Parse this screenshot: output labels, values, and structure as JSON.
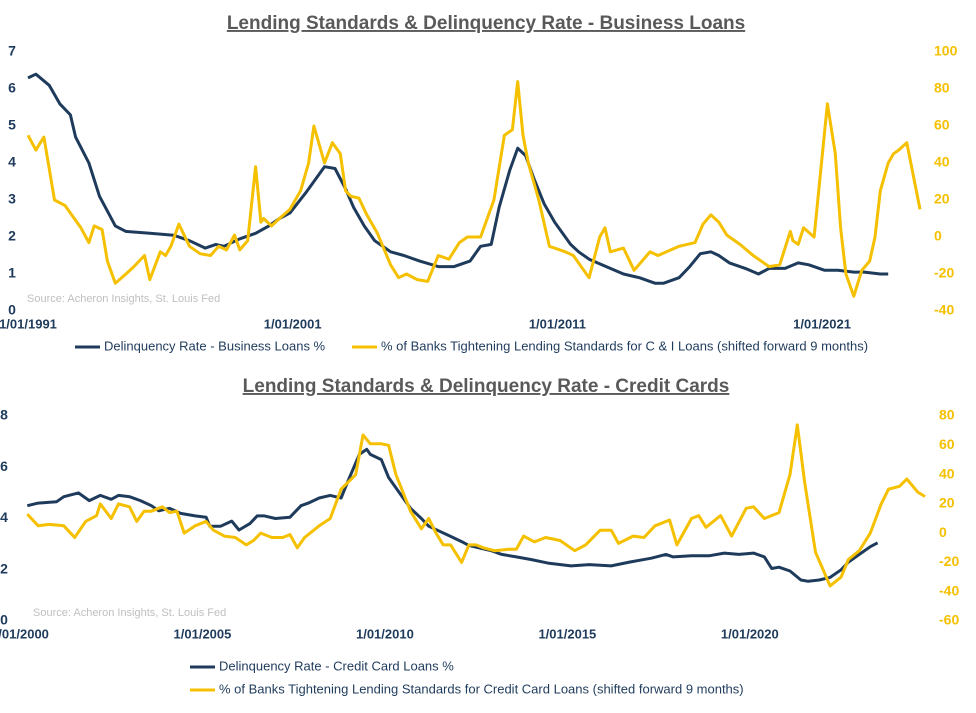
{
  "chart_data": [
    {
      "type": "line",
      "title": "Lending Standards & Delinquency Rate - Business Loans",
      "annotation": "Source: Acheron Insights, St. Louis Fed",
      "xlim": [
        1991,
        2024.7
      ],
      "xticks": [
        {
          "value": 1991,
          "label": "1/01/1991"
        },
        {
          "value": 2001,
          "label": "1/01/2001"
        },
        {
          "value": 2011,
          "label": "1/01/2011"
        },
        {
          "value": 2021,
          "label": "1/01/2021"
        }
      ],
      "ylim": [
        0,
        7
      ],
      "yticks": [
        0,
        1,
        2,
        3,
        4,
        5,
        6,
        7
      ],
      "y2lim": [
        -40,
        100
      ],
      "y2ticks": [
        -40,
        -20,
        0,
        20,
        40,
        60,
        80,
        100
      ],
      "legend": "bottom",
      "series": [
        {
          "name": "Delinquency Rate - Business Loans %",
          "color": "#1f3b5c",
          "x": [
            1991.0,
            1991.3,
            1991.8,
            1992.2,
            1992.6,
            1992.8,
            1993.3,
            1993.7,
            1994.0,
            1994.3,
            1994.7,
            1995.6,
            1996.5,
            1997.1,
            1997.7,
            1998.1,
            1998.4,
            1999.0,
            1999.6,
            2000.1,
            2000.5,
            2000.9,
            2001.5,
            2001.8,
            2002.2,
            2002.6,
            2003.0,
            2003.3,
            2003.7,
            2004.1,
            2004.7,
            2005.2,
            2005.8,
            2006.5,
            2007.1,
            2007.7,
            2008.1,
            2008.5,
            2008.8,
            2009.2,
            2009.5,
            2009.8,
            2010.1,
            2010.5,
            2010.9,
            2011.5,
            2011.8,
            2012.2,
            2013.0,
            2013.5,
            2014.1,
            2014.7,
            2015.0,
            2015.6,
            2016.0,
            2016.4,
            2016.8,
            2017.1,
            2017.5,
            2018.1,
            2018.6,
            2019.0,
            2019.6,
            2020.1,
            2020.5,
            2021.1,
            2021.6,
            2022.2,
            2022.6,
            2023.2,
            2023.5
          ],
          "values": [
            6.3,
            6.4,
            6.1,
            5.6,
            5.3,
            4.7,
            4.0,
            3.1,
            2.7,
            2.3,
            2.15,
            2.1,
            2.05,
            1.9,
            1.7,
            1.8,
            1.75,
            1.95,
            2.1,
            2.3,
            2.5,
            2.65,
            3.2,
            3.5,
            3.9,
            3.85,
            3.3,
            2.8,
            2.3,
            1.9,
            1.6,
            1.5,
            1.35,
            1.2,
            1.2,
            1.35,
            1.75,
            1.8,
            2.8,
            3.8,
            4.4,
            4.2,
            3.6,
            2.9,
            2.4,
            1.8,
            1.6,
            1.4,
            1.15,
            1.0,
            0.9,
            0.75,
            0.75,
            0.9,
            1.2,
            1.55,
            1.6,
            1.5,
            1.3,
            1.15,
            1.0,
            1.15,
            1.15,
            1.3,
            1.25,
            1.1,
            1.1,
            1.05,
            1.05,
            1.0,
            1.0
          ]
        },
        {
          "name": "% of Banks Tightening Lending Standards for C & I Loans (shifted forward 9 months)",
          "color": "#f5c000",
          "axis": "y2",
          "x": [
            1991.0,
            1991.3,
            1991.6,
            1992.0,
            1992.4,
            1993.0,
            1993.3,
            1993.5,
            1993.8,
            1994.0,
            1994.3,
            1994.7,
            1995.0,
            1995.4,
            1995.6,
            1996.0,
            1996.2,
            1996.4,
            1996.7,
            1997.1,
            1997.5,
            1997.9,
            1998.2,
            1998.5,
            1998.8,
            1999.0,
            1999.3,
            1999.6,
            1999.8,
            1999.9,
            2000.2,
            2000.5,
            2000.9,
            2001.3,
            2001.6,
            2001.8,
            2002.2,
            2002.5,
            2002.8,
            2003.0,
            2003.2,
            2003.5,
            2003.8,
            2004.2,
            2004.7,
            2005.0,
            2005.3,
            2005.7,
            2006.1,
            2006.5,
            2006.9,
            2007.3,
            2007.6,
            2008.1,
            2008.6,
            2009.0,
            2009.3,
            2009.5,
            2009.7,
            2009.9,
            2010.3,
            2010.7,
            2011.3,
            2011.6,
            2012.2,
            2012.6,
            2012.8,
            2013.0,
            2013.5,
            2013.9,
            2014.5,
            2014.8,
            2015.6,
            2016.2,
            2016.5,
            2016.8,
            2017.1,
            2017.4,
            2017.9,
            2018.4,
            2019.0,
            2019.4,
            2019.8,
            2019.9,
            2020.1,
            2020.3,
            2020.7,
            2021.2,
            2021.5,
            2021.7,
            2021.9,
            2022.2,
            2022.5,
            2022.8,
            2023.0,
            2023.2,
            2023.5,
            2023.7,
            2023.9,
            2024.2,
            2024.7
          ],
          "values": [
            55,
            47,
            54,
            20,
            17,
            5,
            -3,
            6,
            4,
            -13,
            -25,
            -20,
            -16,
            -10,
            -23,
            -8,
            -10,
            -5,
            7,
            -5,
            -9,
            -10,
            -5,
            -7,
            1,
            -7,
            -2,
            38,
            8,
            10,
            6,
            10,
            15,
            25,
            40,
            60,
            40,
            51,
            45,
            25,
            22,
            21,
            12,
            2,
            -15,
            -22,
            -20,
            -23,
            -24,
            -10,
            -12,
            -3,
            0,
            0,
            20,
            55,
            58,
            84,
            55,
            40,
            20,
            -5,
            -8,
            -10,
            -22,
            0,
            5,
            -8,
            -6,
            -18,
            -8,
            -10,
            -5,
            -3,
            7,
            12,
            8,
            1,
            -4,
            -10,
            -16,
            -15,
            3,
            -2,
            -4,
            5,
            0,
            72,
            45,
            5,
            -20,
            -32,
            -18,
            -13,
            0,
            25,
            40,
            45,
            47,
            51,
            15
          ]
        }
      ]
    },
    {
      "type": "line",
      "title": "Lending Standards & Delinquency Rate - Credit Cards",
      "annotation": "Source: Acheron Insights, St. Louis Fed",
      "xlim": [
        2000,
        2024.8
      ],
      "xticks": [
        {
          "value": 2000,
          "label": "1/01/2000"
        },
        {
          "value": 2005,
          "label": "1/01/2005"
        },
        {
          "value": 2010,
          "label": "1/01/2010"
        },
        {
          "value": 2015,
          "label": "1/01/2015"
        },
        {
          "value": 2020,
          "label": "1/01/2020"
        }
      ],
      "ylim": [
        0,
        8
      ],
      "yticks": [
        0,
        2,
        4,
        6,
        8
      ],
      "y2lim": [
        -60,
        80
      ],
      "y2ticks": [
        -60,
        -40,
        -20,
        0,
        20,
        40,
        60,
        80
      ],
      "legend": "bottom",
      "series": [
        {
          "name": "Delinquency Rate - Credit Card Loans %",
          "color": "#1f3b5c",
          "x": [
            2000.2,
            2000.5,
            2001.0,
            2001.2,
            2001.6,
            2001.9,
            2002.2,
            2002.5,
            2002.7,
            2003.0,
            2003.3,
            2003.6,
            2003.8,
            2004.1,
            2004.4,
            2004.8,
            2005.1,
            2005.2,
            2005.5,
            2005.8,
            2006.0,
            2006.3,
            2006.5,
            2006.7,
            2007.0,
            2007.4,
            2007.7,
            2007.9,
            2008.2,
            2008.5,
            2008.8,
            2009.0,
            2009.3,
            2009.5,
            2009.6,
            2009.9,
            2010.1,
            2010.4,
            2010.7,
            2011.0,
            2011.2,
            2011.5,
            2011.8,
            2012.1,
            2012.3,
            2012.6,
            2012.9,
            2013.2,
            2013.6,
            2014.0,
            2014.5,
            2015.1,
            2015.6,
            2016.2,
            2016.7,
            2017.3,
            2017.7,
            2017.9,
            2018.4,
            2018.9,
            2019.3,
            2019.7,
            2020.1,
            2020.4,
            2020.6,
            2020.8,
            2021.1,
            2021.4,
            2021.6,
            2021.9,
            2022.2,
            2022.5,
            2022.7,
            2023.0,
            2023.3,
            2023.5
          ],
          "values": [
            4.5,
            4.6,
            4.65,
            4.85,
            5.0,
            4.7,
            4.9,
            4.75,
            4.9,
            4.85,
            4.7,
            4.5,
            4.3,
            4.4,
            4.2,
            4.1,
            4.05,
            3.7,
            3.7,
            3.9,
            3.55,
            3.8,
            4.1,
            4.1,
            4.0,
            4.05,
            4.5,
            4.6,
            4.8,
            4.9,
            4.8,
            5.5,
            6.5,
            6.7,
            6.5,
            6.3,
            5.6,
            5.0,
            4.4,
            4.0,
            3.7,
            3.5,
            3.3,
            3.1,
            2.95,
            2.85,
            2.75,
            2.6,
            2.5,
            2.4,
            2.25,
            2.15,
            2.2,
            2.15,
            2.3,
            2.45,
            2.6,
            2.5,
            2.55,
            2.55,
            2.65,
            2.6,
            2.65,
            2.5,
            2.05,
            2.1,
            1.95,
            1.6,
            1.55,
            1.6,
            1.7,
            2.0,
            2.3,
            2.6,
            2.9,
            3.05
          ]
        },
        {
          "name": "% of Banks Tightening Lending Standards for Credit Card Loans (shifted forward 9 months)",
          "color": "#f5c000",
          "axis": "y2",
          "x": [
            2000.2,
            2000.5,
            2000.8,
            2001.2,
            2001.5,
            2001.8,
            2002.1,
            2002.2,
            2002.5,
            2002.7,
            2003.0,
            2003.2,
            2003.4,
            2003.6,
            2003.9,
            2004.1,
            2004.3,
            2004.5,
            2004.8,
            2005.1,
            2005.3,
            2005.6,
            2005.9,
            2006.2,
            2006.4,
            2006.6,
            2006.9,
            2007.2,
            2007.4,
            2007.6,
            2007.8,
            2008.2,
            2008.5,
            2008.8,
            2009.2,
            2009.4,
            2009.6,
            2009.9,
            2010.1,
            2010.3,
            2010.7,
            2011.0,
            2011.2,
            2011.4,
            2011.6,
            2011.8,
            2012.1,
            2012.3,
            2012.5,
            2012.7,
            2013.0,
            2013.4,
            2013.6,
            2013.8,
            2014.1,
            2014.4,
            2014.8,
            2015.2,
            2015.5,
            2015.9,
            2016.2,
            2016.4,
            2016.8,
            2017.1,
            2017.4,
            2017.8,
            2018.0,
            2018.4,
            2018.6,
            2018.8,
            2019.2,
            2019.5,
            2019.9,
            2020.1,
            2020.4,
            2020.8,
            2021.1,
            2021.3,
            2021.5,
            2021.8,
            2022.2,
            2022.5,
            2022.7,
            2023.0,
            2023.3,
            2023.6,
            2023.8,
            2024.1,
            2024.3,
            2024.6,
            2024.8
          ],
          "values": [
            13,
            5,
            6,
            5,
            -3,
            8,
            12,
            20,
            10,
            20,
            18,
            8,
            15,
            15,
            18,
            14,
            15,
            0,
            5,
            8,
            2,
            -2,
            -3,
            -8,
            -5,
            0,
            -3,
            -3,
            -1,
            -10,
            -3,
            5,
            10,
            30,
            40,
            67,
            61,
            61,
            60,
            40,
            15,
            3,
            10,
            0,
            -8,
            -8,
            -20,
            -8,
            -8,
            -10,
            -12,
            -11,
            -11,
            -2,
            -6,
            -3,
            -5,
            -12,
            -8,
            2,
            2,
            -7,
            -2,
            -3,
            5,
            9,
            -8,
            10,
            12,
            4,
            12,
            -2,
            17,
            18,
            10,
            14,
            40,
            74,
            35,
            -13,
            -36,
            -30,
            -18,
            -12,
            0,
            20,
            30,
            32,
            37,
            28,
            25
          ]
        }
      ]
    }
  ]
}
